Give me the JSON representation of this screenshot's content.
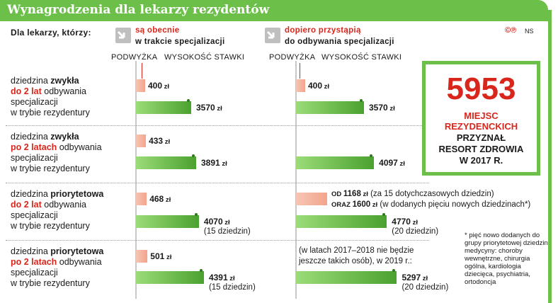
{
  "title": "Wynagrodzenia dla lekarzy rezydentów",
  "copyright": "©℗",
  "author": "NS",
  "for_label": "Dla lekarzy, którzy:",
  "groups": [
    {
      "red": "są obecnie",
      "black": "w trakcie specjalizacji",
      "icon": "arrow-in-icon"
    },
    {
      "red": "dopiero przystąpią",
      "black": "do odbywania specjalizacji",
      "icon": "arrow-in-icon"
    }
  ],
  "col_labels": {
    "raise": "podwyżka",
    "wage": "wysokość stawki"
  },
  "rows": [
    {
      "l1a": "dziedzina ",
      "l1b": "zwykła",
      "l2a": "do 2 lat",
      "l2b": " odbywania",
      "l3": "specjalizacji",
      "l4": "w trybie rezydentury"
    },
    {
      "l1a": "dziedzina ",
      "l1b": "zwykła",
      "l2a": "po 2 latach",
      "l2b": " odbywania",
      "l3": "specjalizacji",
      "l4": "w trybie rezydentury"
    },
    {
      "l1a": "dziedzina ",
      "l1b": "priorytetowa",
      "l2a": "do 2 lat",
      "l2b": " odbywania",
      "l3": "specjalizacji",
      "l4": "w trybie rezydentury"
    },
    {
      "l1a": "dziedzina ",
      "l1b": "priorytetowa",
      "l2a": "po 2 latach",
      "l2b": " odbywania",
      "l3": "specjalizacji",
      "l4": "w trybie rezydentury"
    }
  ],
  "unit": "zł",
  "labels": {
    "left_raise": [
      "400",
      "433",
      "468",
      "501"
    ],
    "left_wage": [
      "3570",
      "3891",
      "4070",
      "4391"
    ],
    "left_wage_sub": [
      "",
      "",
      "(15 dziedzin)",
      "(15 dziedzin)"
    ],
    "right_raise": [
      "400",
      "",
      "",
      ""
    ],
    "right_wage": [
      "3570",
      "4097",
      "4770",
      "5297"
    ],
    "right_wage_sub": [
      "",
      "",
      "(20 dziedzin)",
      "(20 dziedzin)"
    ]
  },
  "notes": {
    "r3_a_pre": "od ",
    "r3_a_val": "1168",
    "r3_a_unit": " zł",
    "r3_a_post": " (za 15 dotychczasowych dziedzin)",
    "r3_b_pre": "oraz ",
    "r3_b_val": "1600",
    "r3_b_unit": " zł",
    "r3_b_post": " (w dodanych pięciu nowych dziedzinach*)",
    "r4_a": "(w latach 2017–2018 nie będzie",
    "r4_b": "jeszcze takich osób), w 2019 r.:"
  },
  "box": {
    "number": "5953",
    "l1": "miejsc",
    "l2": "rezydenckich",
    "l3": "przyznał",
    "l4": "resort zdrowia",
    "l5": "w 2017 r."
  },
  "footnote": "* pięć nowo dodanych do grupy priorytetowej dziedzin medycyny: choroby wewnętrzne, chirurgia ogólna, kardiologia dziecięca, psychiatria, ortodoncja",
  "colors": {
    "green": "#6cc04a",
    "bar_green": "#4ba12f",
    "bar_raise": "#f3a48d",
    "red": "#d9261c"
  },
  "chart_data": {
    "type": "bar",
    "categories": [
      "dziedzina zwykła do 2 lat",
      "dziedzina zwykła po 2 latach",
      "dziedzina priorytetowa do 2 lat",
      "dziedzina priorytetowa po 2 latach"
    ],
    "series": [
      {
        "name": "są obecnie w trakcie specjalizacji — podwyżka",
        "values": [
          400,
          433,
          468,
          501
        ]
      },
      {
        "name": "są obecnie w trakcie specjalizacji — wysokość stawki",
        "values": [
          3570,
          3891,
          4070,
          4391
        ]
      },
      {
        "name": "dopiero przystąpią do odbywania specjalizacji — podwyżka",
        "values": [
          400,
          null,
          1168,
          null
        ]
      },
      {
        "name": "dopiero przystąpią do odbywania specjalizacji — wysokość stawki",
        "values": [
          3570,
          4097,
          4770,
          5297
        ]
      }
    ],
    "ylabel": "zł",
    "ylim": [
      0,
      5300
    ]
  }
}
